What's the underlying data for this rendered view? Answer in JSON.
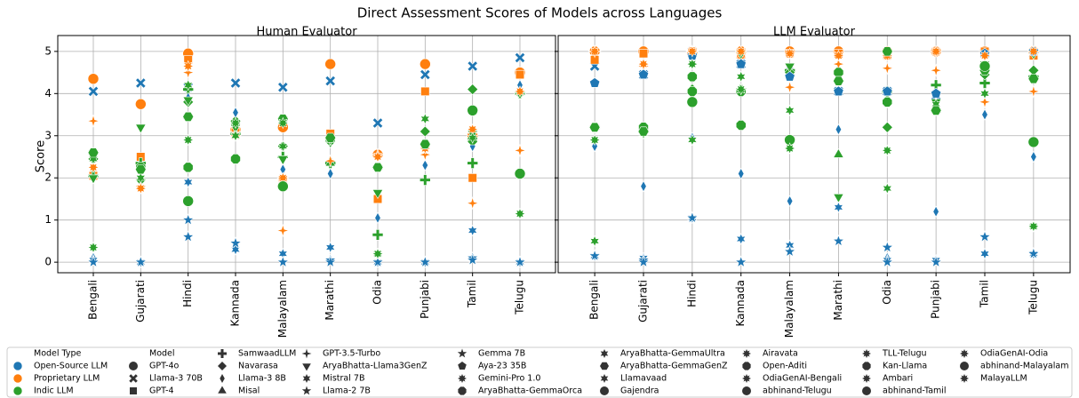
{
  "chart_data": {
    "type": "scatter",
    "title": "Direct Assessment Scores of Models across Languages",
    "ylabel": "Score",
    "ylim": [
      -0.25,
      5.25
    ],
    "yticks": [
      0,
      1,
      2,
      3,
      4,
      5
    ],
    "grid": true,
    "categories": [
      "Bengali",
      "Gujarati",
      "Hindi",
      "Kannada",
      "Malayalam",
      "Marathi",
      "Odia",
      "Punjabi",
      "Tamil",
      "Telugu"
    ],
    "panels": [
      "Human Evaluator",
      "LLM Evaluator"
    ],
    "legend": {
      "hue_title": "Model Type",
      "style_title": "Model",
      "hues": [
        {
          "name": "Open-Source LLM",
          "color": "#1f77b4"
        },
        {
          "name": "Proprietary LLM",
          "color": "#ff7f0e"
        },
        {
          "name": "Indic LLM",
          "color": "#2ca02c"
        }
      ]
    },
    "series": [
      {
        "name": "GPT-4o",
        "color": "#ff7f0e",
        "marker": "circle",
        "values": [
          [
            4.35,
            3.75,
            4.95,
            3.15,
            3.2,
            4.7,
            2.55,
            4.7,
            3.0,
            4.5
          ],
          [
            5,
            5,
            4.95,
            5,
            5,
            5,
            5,
            5,
            5,
            5
          ]
        ]
      },
      {
        "name": "Llama-3 70B",
        "color": "#1f77b4",
        "marker": "x",
        "values": [
          [
            4.05,
            4.25,
            4.15,
            4.25,
            4.15,
            4.3,
            3.3,
            4.45,
            4.65,
            4.85
          ],
          [
            4.65,
            4.45,
            5.0,
            4.7,
            4.5,
            4.05,
            4.05,
            3.95,
            4.95,
            4.95
          ]
        ]
      },
      {
        "name": "GPT-4",
        "color": "#ff7f0e",
        "marker": "square",
        "values": [
          [
            2.05,
            2.5,
            4.8,
            3.1,
            1.95,
            3.05,
            1.5,
            4.05,
            2.0,
            4.45
          ],
          [
            4.8,
            4.95,
            5,
            4.95,
            4.95,
            4.95,
            4.9,
            5,
            5,
            4.9
          ]
        ]
      },
      {
        "name": "SamwaadLLM",
        "color": "#2ca02c",
        "marker": "plus",
        "values": [
          [
            2.05,
            2.35,
            4.1,
            3.05,
            2.5,
            2.35,
            0.65,
            1.95,
            2.35,
            4.0
          ],
          [
            3.2,
            3.1,
            4.05,
            4.1,
            4.55,
            4.5,
            4.05,
            4.2,
            4.25,
            4.4
          ]
        ]
      },
      {
        "name": "Navarasa",
        "color": "#2ca02c",
        "marker": "diamond",
        "values": [
          [
            2.45,
            1.95,
            3.8,
            3.35,
            2.75,
            2.85,
            null,
            3.1,
            4.1,
            4.0
          ],
          [
            3.2,
            3.1,
            4.1,
            4.1,
            4.5,
            4.45,
            3.2,
            3.6,
            4.45,
            4.55
          ]
        ]
      },
      {
        "name": "Llama-3 8B",
        "color": "#1f77b4",
        "marker": "thin_diamond",
        "values": [
          [
            0.1,
            0,
            3.9,
            3.55,
            2.2,
            2.1,
            1.05,
            2.3,
            2.75,
            4.2
          ],
          [
            2.75,
            1.8,
            2.95,
            2.1,
            1.45,
            3.15,
            0.1,
            1.2,
            3.5,
            2.5
          ]
        ]
      },
      {
        "name": "Misal",
        "color": "#2ca02c",
        "marker": "triangle_up",
        "values": [
          [
            null,
            null,
            null,
            null,
            null,
            2.35,
            null,
            null,
            null,
            null
          ],
          [
            null,
            null,
            null,
            null,
            null,
            2.55,
            null,
            null,
            null,
            null
          ]
        ]
      },
      {
        "name": "GPT-3.5-Turbo",
        "color": "#ff7f0e",
        "marker": "star4",
        "values": [
          [
            3.35,
            1.8,
            4.5,
            3.2,
            0.75,
            2.4,
            2.55,
            2.55,
            1.4,
            2.65
          ],
          [
            5,
            4.65,
            5,
            4.85,
            4.15,
            4.7,
            4.6,
            4.55,
            3.8,
            4.05
          ]
        ]
      },
      {
        "name": "AryaBhatta-Llama3GenZ",
        "color": "#2ca02c",
        "marker": "triangle_down",
        "values": [
          [
            2.0,
            3.2,
            3.85,
            3.2,
            2.45,
            2.85,
            1.65,
            2.75,
            3.05,
            4.0
          ],
          [
            3.2,
            3.2,
            4.05,
            4.95,
            4.65,
            1.55,
            3.8,
            3.8,
            4.7,
            4.95
          ]
        ]
      },
      {
        "name": "Mistral 7B",
        "color": "#1f77b4",
        "marker": "star6",
        "values": [
          [
            0.05,
            0,
            1.9,
            0.3,
            0.2,
            0.35,
            0,
            0,
            0.75,
            0
          ],
          [
            0.15,
            0.1,
            1.05,
            0.55,
            0.4,
            1.3,
            0.05,
            0.05,
            0.2,
            0.2
          ]
        ]
      },
      {
        "name": "Llama-2 7B",
        "color": "#1f77b4",
        "marker": "star5",
        "values": [
          [
            0,
            0,
            1.0,
            0.45,
            0,
            0.05,
            0,
            0,
            0.1,
            0
          ],
          [
            0.15,
            0.05,
            1.05,
            0,
            0.25,
            0.5,
            0,
            0,
            0.6,
            0.2
          ]
        ]
      },
      {
        "name": "Gemma 7B",
        "color": "#1f77b4",
        "marker": "star5",
        "values": [
          [
            0,
            0,
            0.6,
            0.45,
            0,
            0,
            0,
            0,
            0.05,
            0
          ],
          [
            0.15,
            0,
            1.05,
            0,
            0.25,
            0.5,
            0.35,
            0,
            0.6,
            0.2
          ]
        ]
      },
      {
        "name": "Aya-23 35B",
        "color": "#1f77b4",
        "marker": "pentagon",
        "values": [
          [
            null,
            null,
            null,
            null,
            null,
            null,
            null,
            null,
            null,
            null
          ],
          [
            4.25,
            4.45,
            4.9,
            4.7,
            4.4,
            4.05,
            4.05,
            4.0,
            4.95,
            5
          ]
        ]
      },
      {
        "name": "Gemini-Pro 1.0",
        "color": "#ff7f0e",
        "marker": "star8",
        "values": [
          [
            2.25,
            1.75,
            4.65,
            3.0,
            2.0,
            2.9,
            2.5,
            2.7,
            3.15,
            4.05
          ],
          [
            5,
            4.7,
            5,
            5,
            4.95,
            4.9,
            4.9,
            5,
            4.9,
            5
          ]
        ]
      },
      {
        "name": "AryaBhatta-GemmaOrca",
        "color": "#2ca02c",
        "marker": "octagon",
        "values": [
          [
            2.6,
            2.25,
            3.45,
            2.45,
            3.4,
            2.9,
            2.25,
            2.8,
            2.9,
            null
          ],
          [
            3.2,
            3.2,
            4.4,
            4.05,
            2.9,
            4.5,
            3.8,
            3.6,
            4.65,
            2.85
          ]
        ]
      },
      {
        "name": "AryaBhatta-GemmaUltra",
        "color": "#2ca02c",
        "marker": "star6",
        "values": [
          [
            2.45,
            2.0,
            2.25,
            3.0,
            2.75,
            2.9,
            0.2,
            3.4,
            2.95,
            null
          ],
          [
            0.5,
            3.05,
            2.9,
            4.4,
            3.6,
            null,
            1.75,
            3.75,
            4.0,
            0.85
          ]
        ]
      },
      {
        "name": "AryaBhatta-GemmaGenZ",
        "color": "#2ca02c",
        "marker": "hexagon",
        "values": [
          [
            2.6,
            2.2,
            3.45,
            2.45,
            3.4,
            2.95,
            2.25,
            2.8,
            3.6,
            2.1
          ],
          [
            3.2,
            3.1,
            3.8,
            3.25,
            2.9,
            4.3,
            5.0,
            3.6,
            4.55,
            4.35
          ]
        ]
      },
      {
        "name": "Llamavaad",
        "color": "#2ca02c",
        "marker": "star6",
        "values": [
          [
            null,
            null,
            4.2,
            null,
            null,
            null,
            null,
            null,
            null,
            null
          ],
          [
            null,
            null,
            2.9,
            null,
            null,
            null,
            null,
            null,
            null,
            null
          ]
        ]
      },
      {
        "name": "Gajendra",
        "color": "#2ca02c",
        "marker": "circle",
        "values": [
          [
            null,
            null,
            1.45,
            null,
            null,
            null,
            null,
            null,
            null,
            null
          ],
          [
            null,
            null,
            3.8,
            null,
            null,
            null,
            null,
            null,
            null,
            null
          ]
        ]
      },
      {
        "name": "Airavata",
        "color": "#2ca02c",
        "marker": "star8",
        "values": [
          [
            null,
            null,
            2.9,
            null,
            null,
            null,
            null,
            null,
            null,
            null
          ],
          [
            null,
            null,
            4.7,
            null,
            null,
            null,
            null,
            null,
            null,
            null
          ]
        ]
      },
      {
        "name": "Open-Aditi",
        "color": "#2ca02c",
        "marker": "octagon",
        "values": [
          [
            null,
            null,
            2.25,
            null,
            null,
            null,
            null,
            null,
            null,
            null
          ],
          [
            null,
            null,
            4.05,
            null,
            null,
            null,
            null,
            null,
            null,
            null
          ]
        ]
      },
      {
        "name": "OdiaGenAI-Bengali",
        "color": "#2ca02c",
        "marker": "star8",
        "values": [
          [
            0.35,
            null,
            null,
            null,
            null,
            null,
            null,
            null,
            null,
            null
          ],
          [
            2.9,
            null,
            null,
            null,
            null,
            null,
            null,
            null,
            null,
            null
          ]
        ]
      },
      {
        "name": "abhinand-Telugu",
        "color": "#2ca02c",
        "marker": "circle",
        "values": [
          [
            null,
            null,
            null,
            null,
            null,
            null,
            null,
            null,
            null,
            2.1
          ],
          [
            null,
            null,
            null,
            null,
            null,
            null,
            null,
            null,
            null,
            2.85
          ]
        ]
      },
      {
        "name": "TLL-Telugu",
        "color": "#2ca02c",
        "marker": "star8",
        "values": [
          [
            null,
            null,
            null,
            null,
            null,
            null,
            null,
            null,
            null,
            1.15
          ],
          [
            null,
            null,
            null,
            null,
            null,
            null,
            null,
            null,
            null,
            0.85
          ]
        ]
      },
      {
        "name": "Kan-Llama",
        "color": "#2ca02c",
        "marker": "octagon",
        "values": [
          [
            null,
            null,
            null,
            2.45,
            null,
            null,
            null,
            null,
            null,
            null
          ],
          [
            null,
            null,
            null,
            3.25,
            null,
            null,
            null,
            null,
            null,
            null
          ]
        ]
      },
      {
        "name": "Ambari",
        "color": "#2ca02c",
        "marker": "star8",
        "values": [
          [
            null,
            null,
            null,
            3.3,
            null,
            null,
            null,
            null,
            null,
            null
          ],
          [
            null,
            null,
            null,
            4.1,
            null,
            null,
            null,
            null,
            null,
            null
          ]
        ]
      },
      {
        "name": "abhinand-Tamil",
        "color": "#2ca02c",
        "marker": "circle",
        "values": [
          [
            null,
            null,
            null,
            null,
            null,
            null,
            null,
            null,
            3.6,
            null
          ],
          [
            null,
            null,
            null,
            null,
            null,
            null,
            null,
            null,
            4.65,
            null
          ]
        ]
      },
      {
        "name": "OdiaGenAI-Odia",
        "color": "#2ca02c",
        "marker": "star8",
        "values": [
          [
            null,
            null,
            null,
            null,
            null,
            null,
            0.2,
            null,
            null,
            null
          ],
          [
            null,
            null,
            null,
            null,
            null,
            null,
            2.65,
            null,
            null,
            null
          ]
        ]
      },
      {
        "name": "abhinand-Malayalam",
        "color": "#2ca02c",
        "marker": "circle",
        "values": [
          [
            null,
            null,
            null,
            null,
            1.8,
            null,
            null,
            null,
            null,
            null
          ],
          [
            null,
            null,
            null,
            null,
            2.9,
            null,
            null,
            null,
            null,
            null
          ]
        ]
      },
      {
        "name": "MalayaLLM",
        "color": "#2ca02c",
        "marker": "star8",
        "values": [
          [
            null,
            null,
            null,
            null,
            3.3,
            null,
            null,
            null,
            null,
            null
          ],
          [
            null,
            null,
            null,
            null,
            2.7,
            null,
            null,
            null,
            null,
            null
          ]
        ]
      }
    ]
  }
}
